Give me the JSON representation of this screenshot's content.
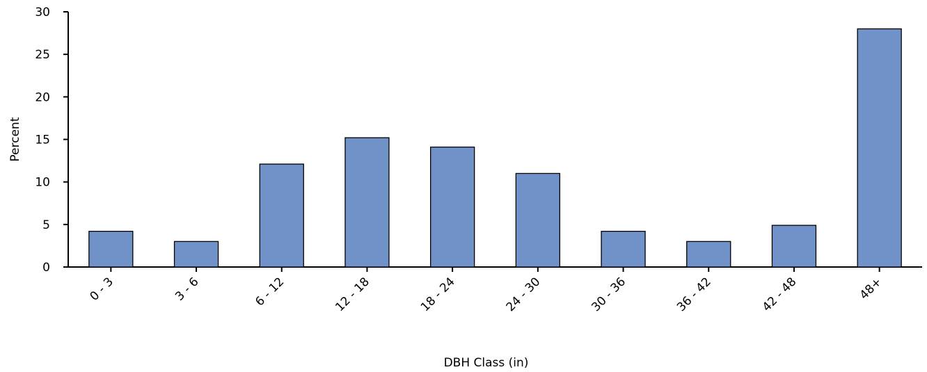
{
  "chart_data": {
    "type": "bar",
    "title": "",
    "xlabel": "DBH Class (in)",
    "ylabel": "Percent",
    "ylim": [
      0,
      30
    ],
    "yticks": [
      0,
      5,
      10,
      15,
      20,
      25,
      30
    ],
    "grid": false,
    "categories": [
      "0 - 3",
      "3 - 6",
      "6 - 12",
      "12 - 18",
      "18 - 24",
      "24 - 30",
      "30 - 36",
      "36 - 42",
      "42 - 48",
      "48+"
    ],
    "values": [
      4.2,
      3.0,
      12.1,
      15.2,
      14.1,
      11.0,
      4.2,
      3.0,
      4.9,
      28.0
    ],
    "bar_color": "#7092c8",
    "bar_stroke": "#000000"
  }
}
